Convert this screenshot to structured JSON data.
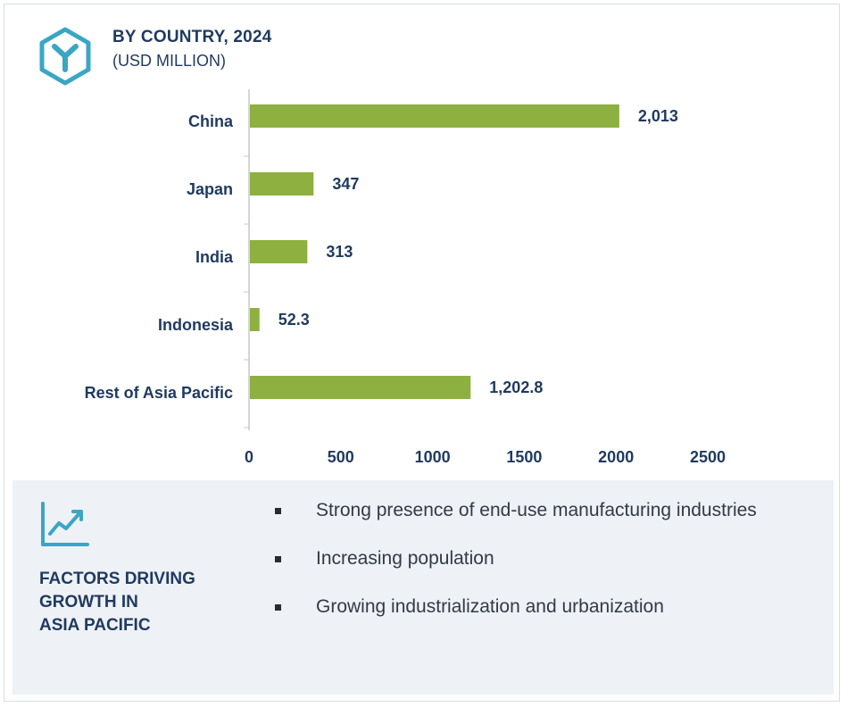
{
  "header": {
    "title": "BY COUNTRY, 2024",
    "subtitle": "(USD MILLION)",
    "logo_icon": "hexagon-y-logo-icon"
  },
  "colors": {
    "bar": "#8db040",
    "text_dark": "#1f3a5f",
    "logo": "#3aa6c4",
    "panel_bg": "#eef1f6"
  },
  "chart_data": {
    "type": "bar",
    "orientation": "horizontal",
    "title": "BY COUNTRY, 2024",
    "subtitle": "(USD MILLION)",
    "categories": [
      "China",
      "Japan",
      "India",
      "Indonesia",
      "Rest of Asia Pacific"
    ],
    "values": [
      2013,
      347,
      313,
      52.3,
      1202.8
    ],
    "value_labels": [
      "2,013",
      "347",
      "313",
      "52.3",
      "1,202.8"
    ],
    "xlim": [
      0,
      2500
    ],
    "xticks": [
      0,
      500,
      1000,
      1500,
      2000,
      2500
    ],
    "xtick_labels": [
      "0",
      "500",
      "1000",
      "1500",
      "2000",
      "2500"
    ],
    "grid": false,
    "legend": "none"
  },
  "factors": {
    "icon": "trend-chart-icon",
    "title_lines": [
      "FACTORS DRIVING",
      "GROWTH IN",
      "ASIA PACIFIC"
    ],
    "items": [
      "Strong presence of end-use manufacturing industries",
      "Increasing population",
      "Growing industrialization and urbanization"
    ]
  }
}
